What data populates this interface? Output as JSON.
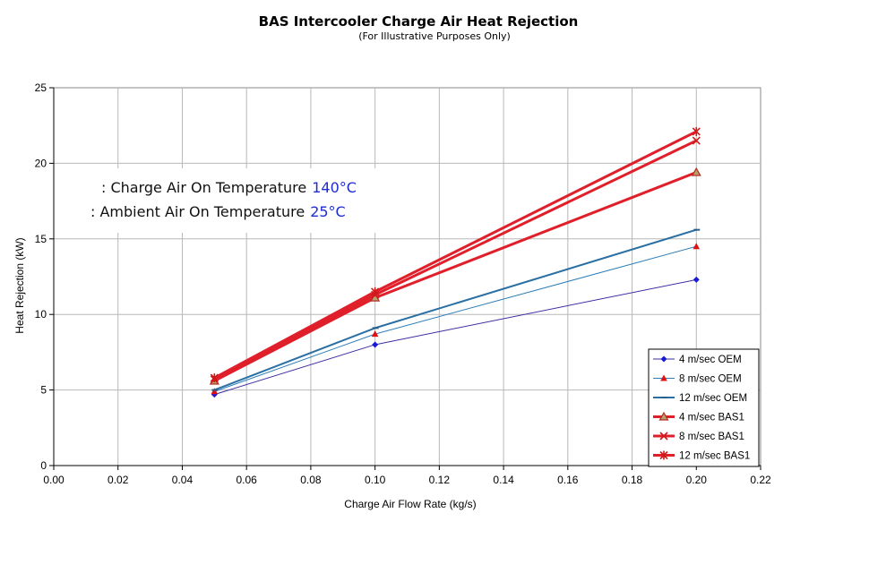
{
  "chart_data": {
    "type": "line",
    "title": "BAS Intercooler Charge Air Heat Rejection",
    "subtitle": "(For Illustrative Purposes Only)",
    "xlabel": "Charge Air Flow Rate (kg/s)",
    "ylabel": "Heat Rejection (kW)",
    "xlim": [
      0,
      0.22
    ],
    "ylim": [
      0,
      25
    ],
    "x_ticks": [
      "0.00",
      "0.02",
      "0.04",
      "0.06",
      "0.08",
      "0.10",
      "0.12",
      "0.14",
      "0.16",
      "0.18",
      "0.20",
      "0.22"
    ],
    "y_ticks": [
      "0",
      "5",
      "10",
      "15",
      "20",
      "25"
    ],
    "grid": true,
    "legend_position": "bottom-right",
    "annotations": [
      {
        "text": ": Charge Air On Temperature",
        "value": "140°C"
      },
      {
        "text": ": Ambient Air On Temperature",
        "value": "25°C"
      }
    ],
    "x": [
      0.05,
      0.1,
      0.2
    ],
    "series": [
      {
        "name": "4 m/sec OEM",
        "values": [
          4.7,
          8.0,
          12.3
        ],
        "color": "#3b2fa0",
        "marker": "diamond",
        "marker_color": "#1a1ad6",
        "width": 1
      },
      {
        "name": "8 m/sec OEM",
        "values": [
          4.9,
          8.7,
          14.5
        ],
        "color": "#2e7eb8",
        "marker": "triangle",
        "marker_color": "#e01010",
        "width": 1
      },
      {
        "name": "12 m/sec OEM",
        "values": [
          5.0,
          9.1,
          15.6
        ],
        "color": "#2a6fa3",
        "marker": "dash",
        "marker_color": "#2a5f8a",
        "width": 2
      },
      {
        "name": "4 m/sec BAS1",
        "values": [
          5.6,
          11.1,
          19.4
        ],
        "color": "#e01f2b",
        "marker": "triangle-hollow",
        "marker_color": "#b03020",
        "width": 3
      },
      {
        "name": "8 m/sec BAS1",
        "values": [
          5.7,
          11.3,
          21.5
        ],
        "color": "#e01f2b",
        "marker": "x",
        "marker_color": "#d01818",
        "width": 3
      },
      {
        "name": "12 m/sec BAS1",
        "values": [
          5.8,
          11.5,
          22.1
        ],
        "color": "#e01f2b",
        "marker": "star",
        "marker_color": "#d01818",
        "width": 3
      }
    ]
  }
}
